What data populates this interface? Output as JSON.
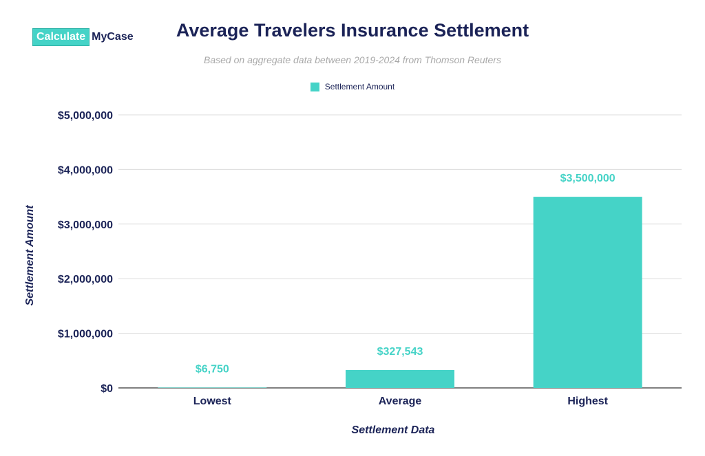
{
  "logo": {
    "box_text": "Calculate",
    "text": "MyCase"
  },
  "chart_data": {
    "type": "bar",
    "title": "Average Travelers Insurance Settlement",
    "subtitle": "Based on aggregate data between 2019-2024 from Thomson Reuters",
    "categories": [
      "Lowest",
      "Average",
      "Highest"
    ],
    "series": [
      {
        "name": "Settlement Amount",
        "values": [
          6750,
          327543,
          3500000
        ],
        "labels": [
          "$6,750",
          "$327,543",
          "$3,500,000"
        ]
      }
    ],
    "xlabel": "Settlement Data",
    "ylabel": "Settlement Amount",
    "ylim": [
      0,
      5000000
    ],
    "yticks": [
      0,
      1000000,
      2000000,
      3000000,
      4000000,
      5000000
    ],
    "ytick_labels": [
      "$0",
      "$1,000,000",
      "$2,000,000",
      "$3,000,000",
      "$4,000,000",
      "$5,000,000"
    ],
    "grid": true,
    "legend_position": "top-center",
    "colors": {
      "bar": "#45d3c7",
      "label": "#45d3c7",
      "text": "#1b2357",
      "grid": "#dcdcdc",
      "subtitle": "#a9a9a9"
    }
  }
}
